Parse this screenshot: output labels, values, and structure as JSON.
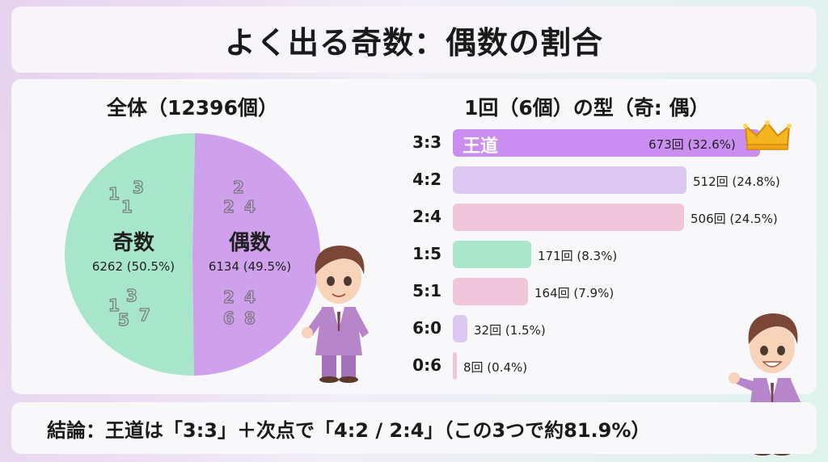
{
  "title": "よく出る奇数：偶数の割合",
  "pie_title": "全体（12396個）",
  "bar_title": "1回（6個）の型（奇: 偶）",
  "conclusion": "結論：王道は「3:3」＋次点で「4:2 / 2:4」（この3つで約81.9%）",
  "colors": {
    "odd": "#a8e6cc",
    "even": "#cfa1ec",
    "bar_top": "#c98ef0",
    "bar_light_purple": "#dcc8f0",
    "bar_pink": "#f2c6da",
    "bar_green": "#a9e6cc"
  },
  "chart_data": [
    {
      "type": "pie",
      "title": "全体（12396個）",
      "slices": [
        {
          "name": "奇数",
          "value": 6262,
          "percent": 50.5,
          "label": "6262 (50.5%)",
          "color": "#a8e6cc",
          "decor": [
            "1",
            "3",
            "1",
            "1",
            "3",
            "5",
            "7"
          ]
        },
        {
          "name": "偶数",
          "value": 6134,
          "percent": 49.5,
          "label": "6134 (49.5%)",
          "color": "#cfa1ec",
          "decor": [
            "2",
            "2",
            "4",
            "2",
            "4",
            "6",
            "8"
          ]
        }
      ]
    },
    {
      "type": "bar",
      "title": "1回（6個）の型（奇: 偶）",
      "orientation": "horizontal",
      "categories": [
        "3:3",
        "4:2",
        "2:4",
        "1:5",
        "5:1",
        "6:0",
        "0:6"
      ],
      "values": [
        673,
        512,
        506,
        171,
        164,
        32,
        8
      ],
      "percents": [
        32.6,
        24.8,
        24.5,
        8.3,
        7.9,
        1.5,
        0.4
      ],
      "value_labels": [
        "673回 (32.6%)",
        "512回 (24.8%)",
        "506回 (24.5%)",
        "171回 (8.3%)",
        "164回 (7.9%)",
        "32回 (1.5%)",
        "8回 (0.4%)"
      ],
      "bar_colors": [
        "#c98ef0",
        "#dcc8f0",
        "#f2c6da",
        "#a9e6cc",
        "#f2c6da",
        "#dcc8f0",
        "#f2c6da"
      ],
      "highlight_label": "王道"
    }
  ]
}
